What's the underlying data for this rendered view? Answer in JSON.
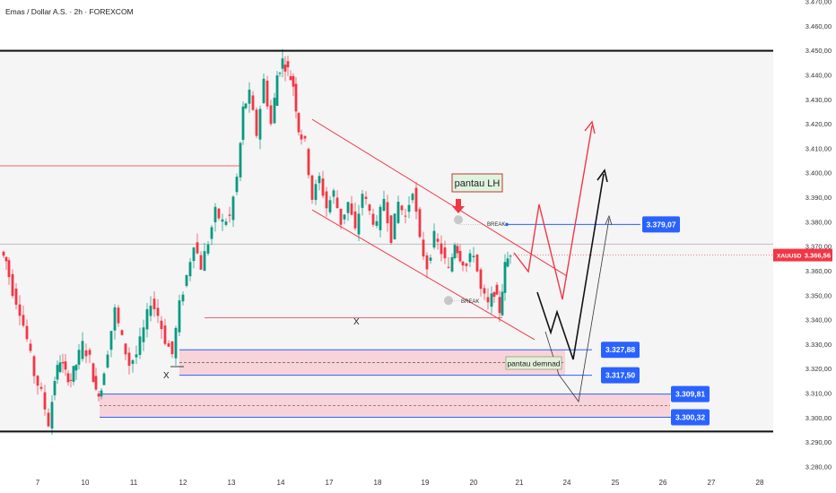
{
  "header": {
    "title": "Emas / Dollar A.S. · 2h · FOREXCOM"
  },
  "chart_data": {
    "type": "candlestick",
    "symbol": "XAUUSD",
    "current_price": "3.366,56",
    "ylim": [
      3275,
      3472
    ],
    "y_ticks": [
      "3.280,00",
      "3.290,00",
      "3.300,00",
      "3.310,00",
      "3.320,00",
      "3.330,00",
      "3.340,00",
      "3.350,00",
      "3.360,00",
      "3.370,00",
      "3.380,00",
      "3.390,00",
      "3.400,00",
      "3.410,00",
      "3.420,00",
      "3.430,00",
      "3.440,00",
      "3.450,00",
      "3.460,00",
      "3.470,00"
    ],
    "x_ticks": [
      "7",
      "10",
      "11",
      "12",
      "13",
      "14",
      "17",
      "18",
      "19",
      "20",
      "21",
      "24",
      "25",
      "26",
      "27",
      "28"
    ],
    "levels": [
      {
        "label": "3.379,07",
        "value": 3379.07
      },
      {
        "label": "3.327,88",
        "value": 3327.88
      },
      {
        "label": "3.317,50",
        "value": 3317.5
      },
      {
        "label": "3.309,81",
        "value": 3309.81
      },
      {
        "label": "3.300,32",
        "value": 3300.32
      }
    ],
    "annotations": {
      "pantau_lh": "pantau LH",
      "pantau_demand": "pantau demnad",
      "break_upper": "BREAK",
      "break_lower": "BREAK",
      "x_mark_1": "X",
      "x_mark_2": "X"
    },
    "colors": {
      "up": "#089981",
      "down": "#f23645",
      "label_blue": "#2962ff",
      "current_red": "#f23645",
      "zone": "#f8c7cf",
      "projection_red": "#f23645",
      "projection_black": "#111111"
    }
  }
}
